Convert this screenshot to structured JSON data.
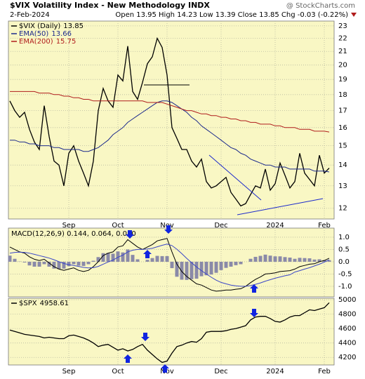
{
  "chart_data": [
    {
      "type": "line",
      "title": "$VIX Volatility Index - New Methodology INDX",
      "source": "@ StockCharts.com",
      "date": "2-Feb-2024",
      "quote": "Open 13.95 High 14.23 Low 13.39 Close 13.85 Chg -0.03 (-0.22%)",
      "categories": [
        null,
        null,
        null,
        null,
        null,
        null,
        null,
        null,
        null,
        null,
        null,
        null,
        "Sep",
        null,
        null,
        null,
        null,
        null,
        null,
        null,
        null,
        null,
        "Oct",
        null,
        null,
        null,
        null,
        null,
        null,
        null,
        null,
        null,
        "Nov",
        null,
        null,
        null,
        null,
        null,
        null,
        null,
        null,
        null,
        null,
        "Dec",
        null,
        null,
        null,
        null,
        null,
        null,
        null,
        null,
        null,
        null,
        "2024",
        null,
        null,
        null,
        null,
        null,
        null,
        null,
        null,
        null,
        "Feb",
        null
      ],
      "series": [
        {
          "name": "$VIX (Daily)",
          "color": "#000000",
          "values": [
            17.6,
            17.0,
            16.6,
            16.9,
            15.9,
            15.2,
            14.8,
            17.3,
            15.5,
            14.2,
            14.0,
            13.0,
            14.6,
            15.0,
            14.2,
            13.6,
            13.0,
            14.2,
            17.0,
            18.4,
            17.6,
            17.2,
            19.3,
            18.9,
            21.4,
            18.2,
            17.7,
            18.8,
            20.1,
            20.6,
            22.0,
            21.3,
            19.3,
            16.0,
            15.4,
            14.8,
            14.8,
            14.2,
            13.9,
            14.3,
            13.2,
            12.9,
            13.0,
            13.2,
            13.4,
            12.7,
            12.4,
            12.1,
            12.2,
            12.6,
            13.0,
            12.9,
            13.8,
            12.8,
            13.1,
            14.1,
            13.5,
            12.9,
            13.2,
            14.6,
            13.6,
            13.3,
            13.0,
            14.5,
            13.6,
            13.85
          ]
        },
        {
          "name": "EMA(50)",
          "color": "#1c2a8c",
          "values": [
            15.3,
            15.3,
            15.2,
            15.2,
            15.1,
            15.1,
            15.0,
            15.0,
            15.0,
            14.9,
            14.9,
            14.8,
            14.8,
            14.8,
            14.8,
            14.7,
            14.7,
            14.8,
            14.9,
            15.1,
            15.3,
            15.6,
            15.8,
            16.0,
            16.3,
            16.5,
            16.7,
            16.9,
            17.1,
            17.3,
            17.5,
            17.6,
            17.6,
            17.5,
            17.3,
            17.1,
            16.9,
            16.6,
            16.4,
            16.1,
            15.9,
            15.7,
            15.5,
            15.3,
            15.1,
            14.9,
            14.8,
            14.6,
            14.5,
            14.3,
            14.2,
            14.1,
            14.0,
            14.0,
            13.9,
            13.9,
            13.9,
            13.8,
            13.8,
            13.8,
            13.8,
            13.8,
            13.7,
            13.7,
            13.7,
            13.66
          ]
        },
        {
          "name": "EMA(200)",
          "color": "#b01c1c",
          "values": [
            18.2,
            18.2,
            18.2,
            18.2,
            18.2,
            18.2,
            18.1,
            18.1,
            18.1,
            18.0,
            18.0,
            17.9,
            17.9,
            17.8,
            17.8,
            17.7,
            17.7,
            17.6,
            17.6,
            17.6,
            17.6,
            17.6,
            17.6,
            17.6,
            17.6,
            17.6,
            17.6,
            17.6,
            17.5,
            17.5,
            17.5,
            17.5,
            17.4,
            17.3,
            17.2,
            17.1,
            17.0,
            17.0,
            16.9,
            16.8,
            16.8,
            16.7,
            16.7,
            16.6,
            16.6,
            16.5,
            16.5,
            16.4,
            16.4,
            16.3,
            16.3,
            16.2,
            16.2,
            16.2,
            16.1,
            16.1,
            16.0,
            16.0,
            16.0,
            15.9,
            15.9,
            15.9,
            15.8,
            15.8,
            15.8,
            15.75
          ]
        }
      ],
      "log": true,
      "ylim": [
        11.55,
        23.4
      ],
      "yticks": [
        12,
        13,
        14,
        15,
        16,
        17,
        18,
        19,
        20,
        21,
        22,
        23
      ],
      "grid": true
    },
    {
      "type": "line",
      "legend": "MACD(12,26,9) 0.144, 0.064, 0.080",
      "series": [
        {
          "type": "bar",
          "color": "#8a8aa8",
          "values": [
            0.25,
            0.12,
            0.01,
            -0.03,
            -0.15,
            -0.2,
            -0.2,
            -0.1,
            -0.2,
            -0.28,
            -0.3,
            -0.28,
            -0.18,
            -0.1,
            -0.16,
            -0.17,
            -0.1,
            0.04,
            0.19,
            0.35,
            0.36,
            0.33,
            0.42,
            0.38,
            0.5,
            0.28,
            0.1,
            0.0,
            0.08,
            0.15,
            0.24,
            0.23,
            0.23,
            -0.26,
            -0.61,
            -0.73,
            -0.74,
            -0.71,
            -0.69,
            -0.59,
            -0.55,
            -0.52,
            -0.45,
            -0.34,
            -0.25,
            -0.2,
            -0.14,
            -0.1,
            0.0,
            0.12,
            0.2,
            0.24,
            0.29,
            0.25,
            0.22,
            0.22,
            0.19,
            0.17,
            0.12,
            0.16,
            0.15,
            0.14,
            0.09,
            0.1,
            0.07,
            0.064
          ]
        },
        {
          "color": "#000000",
          "values": [
            0.6,
            0.5,
            0.4,
            0.35,
            0.2,
            0.1,
            0.05,
            0.1,
            -0.05,
            -0.2,
            -0.3,
            -0.35,
            -0.3,
            -0.25,
            -0.35,
            -0.4,
            -0.35,
            -0.2,
            0.0,
            0.25,
            0.35,
            0.4,
            0.6,
            0.65,
            0.9,
            0.75,
            0.6,
            0.5,
            0.6,
            0.7,
            0.85,
            0.9,
            0.95,
            0.4,
            -0.1,
            -0.4,
            -0.6,
            -0.75,
            -0.9,
            -0.95,
            -1.05,
            -1.15,
            -1.2,
            -1.18,
            -1.15,
            -1.15,
            -1.12,
            -1.1,
            -1.0,
            -0.85,
            -0.72,
            -0.62,
            -0.5,
            -0.48,
            -0.45,
            -0.4,
            -0.38,
            -0.36,
            -0.3,
            -0.2,
            -0.15,
            -0.1,
            -0.08,
            0.0,
            0.05,
            0.144
          ]
        },
        {
          "color": "#3a46c8",
          "values": [
            0.35,
            0.38,
            0.39,
            0.38,
            0.35,
            0.3,
            0.25,
            0.2,
            0.15,
            0.08,
            0.0,
            -0.07,
            -0.12,
            -0.15,
            -0.19,
            -0.23,
            -0.25,
            -0.24,
            -0.19,
            -0.1,
            -0.01,
            0.07,
            0.18,
            0.27,
            0.4,
            0.47,
            0.5,
            0.5,
            0.52,
            0.55,
            0.61,
            0.67,
            0.72,
            0.66,
            0.51,
            0.33,
            0.14,
            -0.04,
            -0.21,
            -0.36,
            -0.5,
            -0.63,
            -0.75,
            -0.84,
            -0.9,
            -0.95,
            -0.98,
            -1.0,
            -1.0,
            -0.97,
            -0.92,
            -0.86,
            -0.79,
            -0.73,
            -0.67,
            -0.62,
            -0.57,
            -0.53,
            -0.42,
            -0.36,
            -0.3,
            -0.24,
            -0.17,
            -0.1,
            -0.02,
            0.08
          ]
        }
      ],
      "ylim": [
        -1.43,
        1.37
      ],
      "yticks": [
        {
          "value": 1,
          "label": "1.0"
        },
        {
          "value": 0.5,
          "label": "0.5"
        },
        {
          "value": 0,
          "label": "0.0"
        },
        {
          "value": -0.5,
          "label": "-0.5"
        },
        {
          "value": -1,
          "label": "-1.0"
        }
      ],
      "grid": true
    },
    {
      "type": "line",
      "categories": [
        null,
        null,
        null,
        null,
        null,
        null,
        null,
        null,
        null,
        null,
        null,
        null,
        "Sep",
        null,
        null,
        null,
        null,
        null,
        null,
        null,
        null,
        null,
        "Oct",
        null,
        null,
        null,
        null,
        null,
        null,
        null,
        null,
        null,
        "Nov",
        null,
        null,
        null,
        null,
        null,
        null,
        null,
        null,
        null,
        null,
        "Dec",
        null,
        null,
        null,
        null,
        null,
        null,
        null,
        null,
        null,
        null,
        "2024",
        null,
        null,
        null,
        null,
        null,
        null,
        null,
        null,
        null,
        "Feb",
        null
      ],
      "series": [
        {
          "name": "$SPX",
          "color": "#000000",
          "values": [
            4580,
            4560,
            4540,
            4520,
            4510,
            4500,
            4490,
            4470,
            4480,
            4470,
            4460,
            4460,
            4500,
            4510,
            4490,
            4470,
            4440,
            4400,
            4350,
            4370,
            4380,
            4340,
            4300,
            4320,
            4290,
            4310,
            4350,
            4380,
            4300,
            4240,
            4180,
            4130,
            4150,
            4260,
            4350,
            4370,
            4400,
            4420,
            4410,
            4460,
            4550,
            4560,
            4560,
            4560,
            4570,
            4590,
            4600,
            4620,
            4640,
            4720,
            4760,
            4770,
            4770,
            4740,
            4700,
            4690,
            4720,
            4760,
            4780,
            4780,
            4820,
            4860,
            4850,
            4870,
            4890,
            4958.61
          ]
        }
      ],
      "ylim": [
        4095,
        5020
      ],
      "yticks": [
        4200,
        4400,
        4600,
        4800,
        5000
      ],
      "grid": true
    }
  ]
}
